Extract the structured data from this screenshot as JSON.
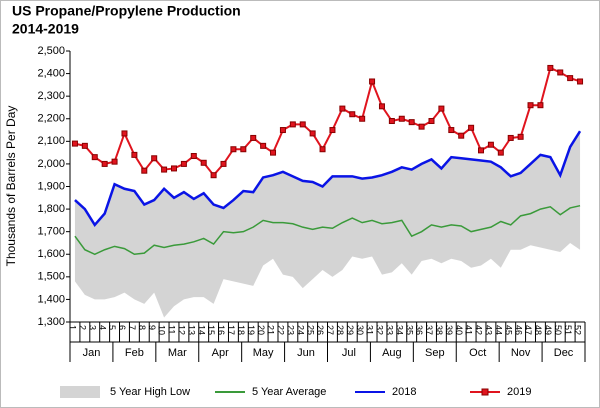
{
  "chart_data": {
    "type": "line",
    "title": "US Propane/Propylene Production",
    "subtitle": "2014-2019",
    "y_label": "Thousands of Barrels Per Day",
    "categories": [
      "1",
      "2",
      "3",
      "4",
      "5",
      "6",
      "7",
      "8",
      "9",
      "10",
      "11",
      "12",
      "13",
      "14",
      "15",
      "16",
      "17",
      "18",
      "19",
      "20",
      "21",
      "22",
      "23",
      "24",
      "25",
      "26",
      "27",
      "28",
      "29",
      "30",
      "31",
      "32",
      "33",
      "34",
      "35",
      "36",
      "37",
      "38",
      "39",
      "40",
      "41",
      "42",
      "43",
      "44",
      "45",
      "46",
      "47",
      "48",
      "49",
      "50",
      "51",
      "52"
    ],
    "month_labels": [
      "Jan",
      "Feb",
      "Mar",
      "Apr",
      "May",
      "Jun",
      "Jul",
      "Aug",
      "Sep",
      "Oct",
      "Nov",
      "Dec"
    ],
    "ylim": [
      1300,
      2500
    ],
    "yticks": [
      {
        "value": 1300,
        "label": "1,300"
      },
      {
        "value": 1400,
        "label": "1,400"
      },
      {
        "value": 1500,
        "label": "1,500"
      },
      {
        "value": 1600,
        "label": "1,600"
      },
      {
        "value": 1700,
        "label": "1,700"
      },
      {
        "value": 1800,
        "label": "1,800"
      },
      {
        "value": 1900,
        "label": "1,900"
      },
      {
        "value": 2000,
        "label": "2,000"
      },
      {
        "value": 2100,
        "label": "2,100"
      },
      {
        "value": 2200,
        "label": "2,200"
      },
      {
        "value": 2300,
        "label": "2,300"
      },
      {
        "value": 2400,
        "label": "2,400"
      },
      {
        "value": 2500,
        "label": "2,500"
      }
    ],
    "range": {
      "name": "5 Year High Low",
      "color": "#d4d4d4",
      "high": [
        1840,
        1800,
        1730,
        1780,
        1910,
        1890,
        1880,
        1820,
        1840,
        1890,
        1850,
        1875,
        1845,
        1870,
        1820,
        1805,
        1840,
        1880,
        1875,
        1940,
        1950,
        1965,
        1945,
        1925,
        1920,
        1900,
        1945,
        1945,
        1945,
        1935,
        1940,
        1950,
        1965,
        1985,
        1975,
        2000,
        2020,
        1980,
        2030,
        2025,
        2020,
        2015,
        2010,
        1985,
        1945,
        1960,
        2000,
        2040,
        2030,
        1950,
        2075,
        2145
      ],
      "low": [
        1480,
        1420,
        1400,
        1400,
        1410,
        1430,
        1400,
        1380,
        1430,
        1320,
        1370,
        1400,
        1410,
        1410,
        1380,
        1490,
        1480,
        1470,
        1460,
        1550,
        1580,
        1510,
        1500,
        1450,
        1490,
        1530,
        1500,
        1530,
        1590,
        1580,
        1590,
        1510,
        1520,
        1560,
        1510,
        1570,
        1580,
        1560,
        1580,
        1570,
        1540,
        1550,
        1580,
        1540,
        1620,
        1620,
        1640,
        1630,
        1620,
        1610,
        1650,
        1620
      ]
    },
    "series": [
      {
        "name": "5 Year Average",
        "color": "#3a9a3a",
        "marker": false,
        "values": [
          1680,
          1620,
          1600,
          1620,
          1635,
          1625,
          1600,
          1605,
          1640,
          1630,
          1640,
          1645,
          1655,
          1670,
          1645,
          1700,
          1695,
          1700,
          1720,
          1750,
          1740,
          1740,
          1735,
          1720,
          1710,
          1720,
          1715,
          1740,
          1760,
          1740,
          1750,
          1735,
          1740,
          1750,
          1680,
          1700,
          1730,
          1720,
          1730,
          1725,
          1700,
          1710,
          1720,
          1745,
          1730,
          1770,
          1780,
          1800,
          1810,
          1775,
          1805,
          1815
        ]
      },
      {
        "name": "2018",
        "color": "#0a14e6",
        "marker": false,
        "values": [
          1840,
          1800,
          1730,
          1780,
          1910,
          1890,
          1880,
          1820,
          1840,
          1890,
          1850,
          1875,
          1845,
          1870,
          1820,
          1805,
          1840,
          1880,
          1875,
          1940,
          1950,
          1965,
          1945,
          1925,
          1920,
          1900,
          1945,
          1945,
          1945,
          1935,
          1940,
          1950,
          1965,
          1985,
          1975,
          2000,
          2020,
          1980,
          2030,
          2025,
          2020,
          2015,
          2010,
          1985,
          1945,
          1960,
          2000,
          2040,
          2030,
          1950,
          2075,
          2145
        ]
      },
      {
        "name": "2019",
        "color": "#e0141e",
        "marker": true,
        "values": [
          2090,
          2080,
          2030,
          2000,
          2010,
          2135,
          2040,
          1970,
          2025,
          1975,
          1980,
          2000,
          2035,
          2005,
          1950,
          2000,
          2065,
          2065,
          2115,
          2080,
          2050,
          2150,
          2175,
          2175,
          2135,
          2065,
          2150,
          2245,
          2220,
          2200,
          2365,
          2255,
          2190,
          2200,
          2185,
          2165,
          2190,
          2245,
          2150,
          2125,
          2160,
          2060,
          2085,
          2050,
          2115,
          2120,
          2260,
          2260,
          2425,
          2405,
          2380,
          2365
        ]
      }
    ]
  }
}
